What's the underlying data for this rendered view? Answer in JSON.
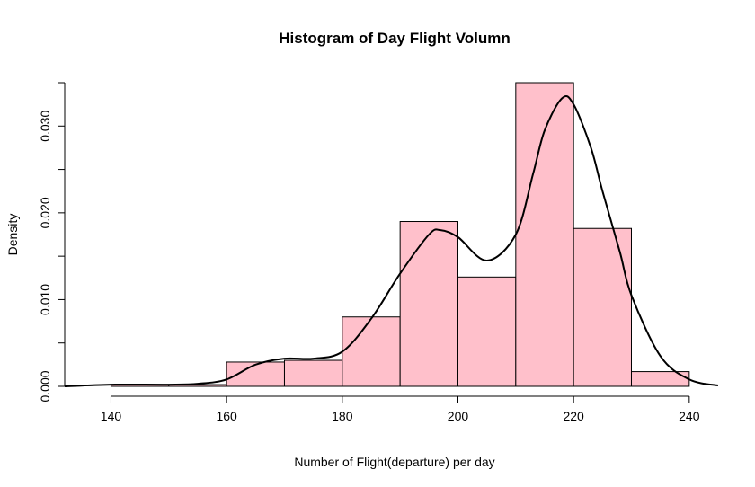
{
  "chart_data": {
    "type": "bar",
    "title": "Histogram of Day Flight Volumn",
    "xlabel": "Number of Flight(departure) per day",
    "ylabel": "Density",
    "bin_edges": [
      140,
      150,
      160,
      170,
      180,
      190,
      200,
      210,
      220,
      230,
      240
    ],
    "values": [
      0.0002,
      0.0002,
      0.0028,
      0.003,
      0.008,
      0.019,
      0.0126,
      0.035,
      0.0182,
      0.0017
    ],
    "density_curve": {
      "x": [
        132,
        140,
        150,
        155,
        160,
        165,
        170,
        175,
        180,
        185,
        190,
        195,
        197,
        200,
        205,
        210,
        213,
        215,
        218,
        220,
        223,
        225,
        228,
        230,
        235,
        240,
        245
      ],
      "y": [
        0.0,
        0.0002,
        0.0002,
        0.0003,
        0.0008,
        0.0025,
        0.0032,
        0.0032,
        0.004,
        0.0078,
        0.013,
        0.0175,
        0.018,
        0.0172,
        0.0145,
        0.0175,
        0.0245,
        0.0295,
        0.0332,
        0.0325,
        0.0275,
        0.0225,
        0.0155,
        0.0105,
        0.0035,
        0.0008,
        0.0001
      ]
    },
    "x_ticks": [
      140,
      160,
      180,
      200,
      220,
      240
    ],
    "x_tick_labels": [
      "140",
      "160",
      "180",
      "200",
      "220",
      "240"
    ],
    "y_ticks": [
      0,
      0.005,
      0.01,
      0.015,
      0.02,
      0.025,
      0.03,
      0.035
    ],
    "y_tick_labels": [
      "0.000",
      "",
      "0.010",
      "",
      "0.020",
      "",
      "0.030",
      ""
    ],
    "xlim": [
      132,
      245
    ],
    "ylim": [
      0,
      0.035
    ],
    "grid": false,
    "legend": "none",
    "colors": {
      "bar_fill": "#FFC0CB",
      "bar_stroke": "#000000",
      "curve": "#000000",
      "axis": "#000000",
      "text": "#000000"
    }
  }
}
